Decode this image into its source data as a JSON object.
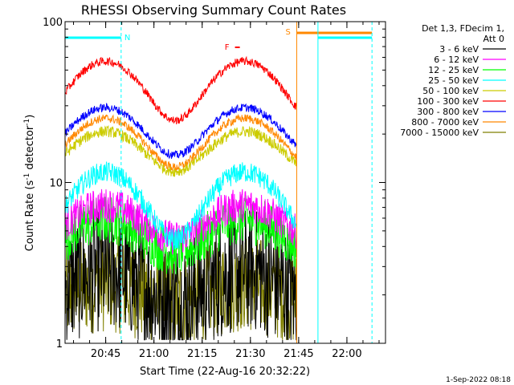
{
  "chart_data": {
    "type": "line",
    "title": "RHESSI Observing Summary Count Rates",
    "xlabel": "Start Time (22-Aug-16 20:32:22)",
    "ylabel_main": "Count Rate (s",
    "ylabel_sup": "-1",
    "ylabel_tail": " detector",
    "ylabel_sup2": "-1",
    "ylabel_close": ")",
    "yscale": "log",
    "ylim": [
      1,
      100
    ],
    "xlim_minutes": [
      20.5,
      21.0,
      21.25,
      21.5,
      21.75,
      22.0,
      22.2
    ],
    "x_ticks": [
      {
        "label": "20:45",
        "t": 20.75
      },
      {
        "label": "21:00",
        "t": 21.0
      },
      {
        "label": "21:15",
        "t": 21.25
      },
      {
        "label": "21:30",
        "t": 21.5
      },
      {
        "label": "21:45",
        "t": 21.75
      },
      {
        "label": "22:00",
        "t": 22.0
      }
    ],
    "x_range_hours": [
      20.5394,
      22.2
    ],
    "y_ticks": [
      {
        "label": "1",
        "v": 1
      },
      {
        "label": "10",
        "v": 10
      },
      {
        "label": "100",
        "v": 100
      }
    ],
    "legend_header": [
      "Det 1,3, FDecim 1,",
      "Att 0"
    ],
    "series": [
      {
        "name": "3 - 6 keV",
        "color": "#000000",
        "base": 2.2,
        "amp": 0.6,
        "noise": 0.9
      },
      {
        "name": "6 - 12 keV",
        "color": "#ff00ff",
        "base": 5.5,
        "amp": 1.5,
        "noise": 0.25
      },
      {
        "name": "12 - 25 keV",
        "color": "#00ff00",
        "base": 4.5,
        "amp": 1.2,
        "noise": 0.35
      },
      {
        "name": "25 - 50 keV",
        "color": "#00ffff",
        "base": 7.0,
        "amp": 4.0,
        "noise": 0.15
      },
      {
        "name": "50 - 100 keV",
        "color": "#cccc00",
        "base": 15.0,
        "amp": 5.0,
        "noise": 0.08
      },
      {
        "name": "100 - 300 keV",
        "color": "#ff0000",
        "base": 36.0,
        "amp": 18.0,
        "noise": 0.06
      },
      {
        "name": "300 - 800 keV",
        "color": "#0000ff",
        "base": 20.0,
        "amp": 8.0,
        "noise": 0.06
      },
      {
        "name": "800 - 7000 keV",
        "color": "#ff8800",
        "base": 17.0,
        "amp": 7.0,
        "noise": 0.06
      },
      {
        "name": "7000 - 15000 keV",
        "color": "#808000",
        "base": 2.0,
        "amp": 0.3,
        "noise": 0.7
      }
    ],
    "annotations": [
      {
        "text": "N",
        "color": "#00ffff",
        "t": 20.83
      },
      {
        "text": "S",
        "color": "#ff8800",
        "t": 21.74
      },
      {
        "text": "F",
        "color": "#ff0000",
        "t": 21.4
      }
    ],
    "timestamp": "1-Sep-2022 08:18"
  }
}
